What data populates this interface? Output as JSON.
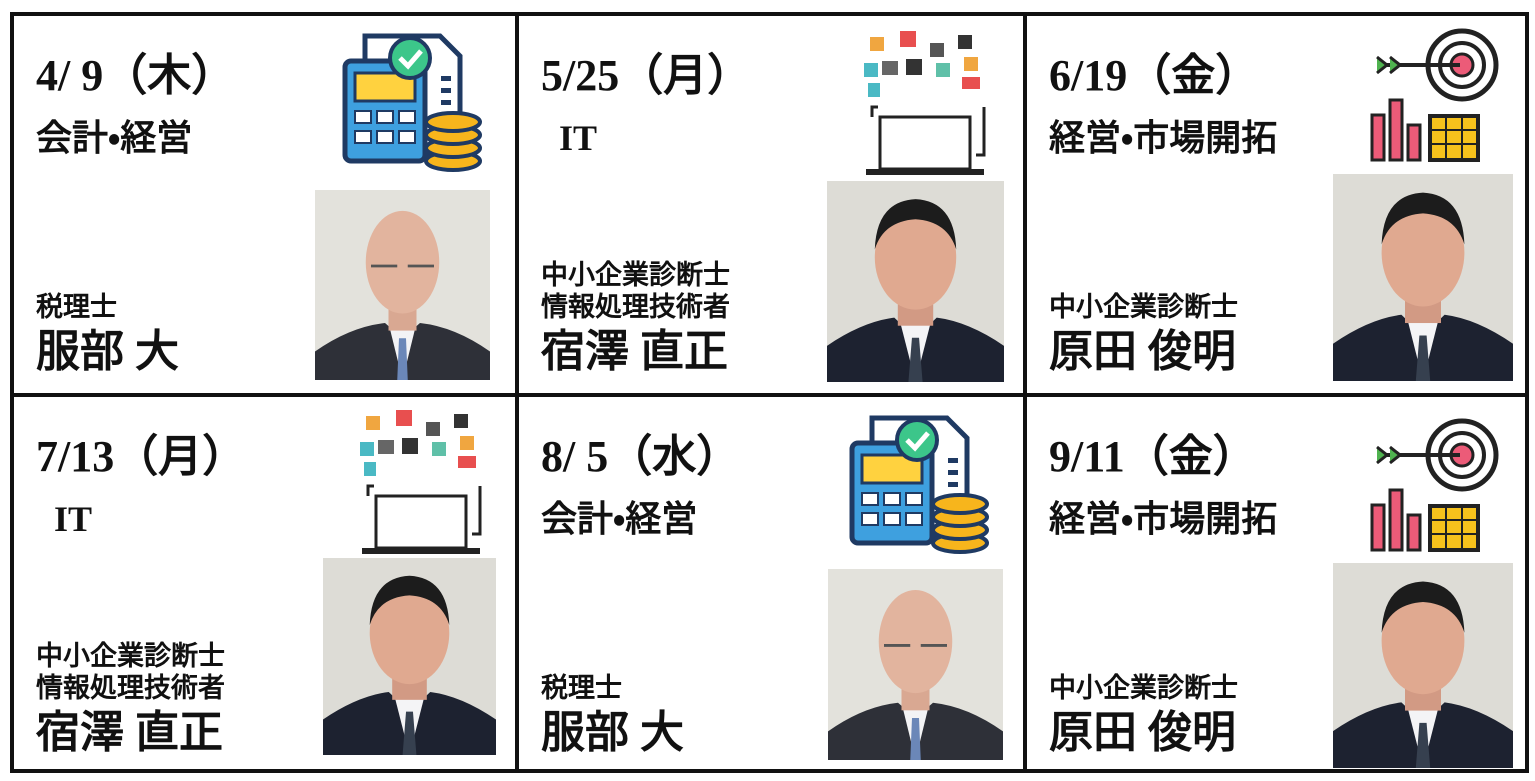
{
  "cells": [
    {
      "date": "4/ 9（木）",
      "topic": "会計・経営",
      "titles": [
        "税理士"
      ],
      "name": "服部 大"
    },
    {
      "date": "5/25（月）",
      "topic": "IT",
      "titles": [
        "中小企業診断士",
        "情報処理技術者"
      ],
      "name": "宿澤 直正"
    },
    {
      "date": "6/19（金）",
      "topic": "経営・市場開拓",
      "titles": [
        "中小企業診断士"
      ],
      "name": "原田 俊明"
    },
    {
      "date": "7/13（月）",
      "topic": "IT",
      "titles": [
        "中小企業診断士",
        "情報処理技術者"
      ],
      "name": "宿澤 直正"
    },
    {
      "date": "8/ 5（水）",
      "topic": "会計・経営",
      "titles": [
        "税理士"
      ],
      "name": "服部 大"
    },
    {
      "date": "9/11（金）",
      "topic": "経営・市場開拓",
      "titles": [
        "中小企業診断士"
      ],
      "name": "原田 俊明"
    }
  ]
}
